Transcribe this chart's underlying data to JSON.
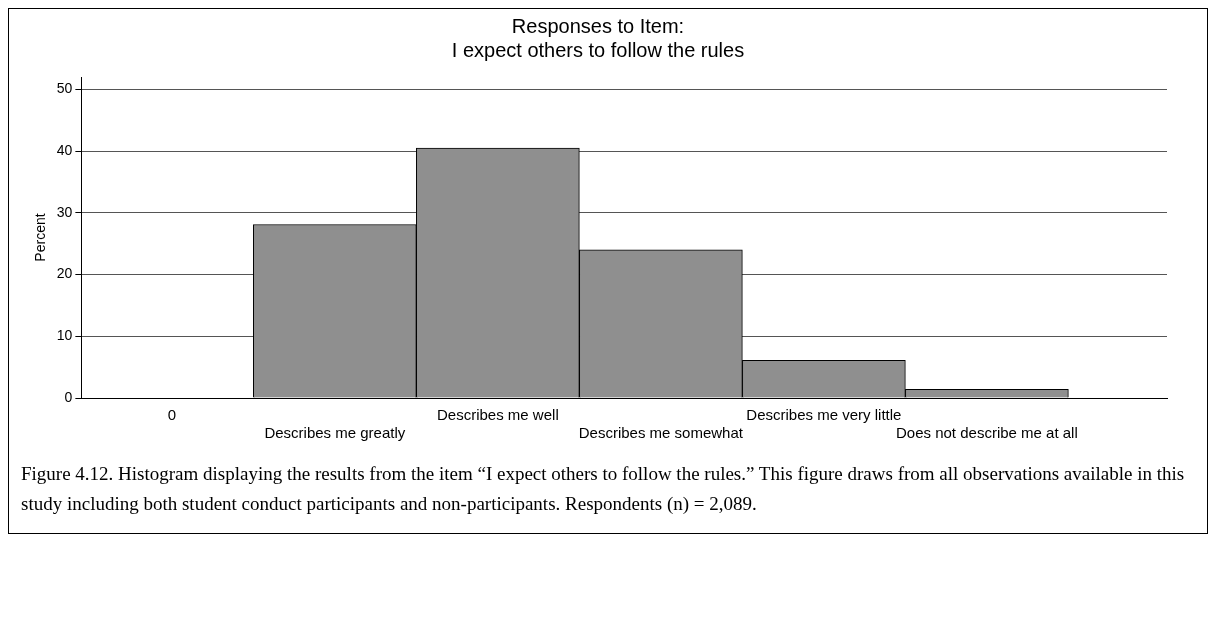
{
  "chart_data": {
    "type": "bar",
    "title": "Responses to Item:\nI expect others to follow the rules",
    "ylabel": "Percent",
    "categories": [
      "0",
      "Describes me greatly",
      "Describes me well",
      "Describes me somewhat",
      "Describes me very little",
      "Does not describe me at all"
    ],
    "values": [
      null,
      28.1,
      40.5,
      24.0,
      6.1,
      1.4
    ],
    "color": "#8f8f8f",
    "ylim": [
      0,
      52
    ],
    "yticks": [
      0,
      10,
      20,
      30,
      40,
      50
    ],
    "grid": "y",
    "annotations": [
      "Figure 4.12. Histogram displaying the results from the item “I expect others to follow the rules.” This figure draws from all observations available in this study including both student conduct participants and non-participants. Respondents (n) = 2,089."
    ]
  }
}
